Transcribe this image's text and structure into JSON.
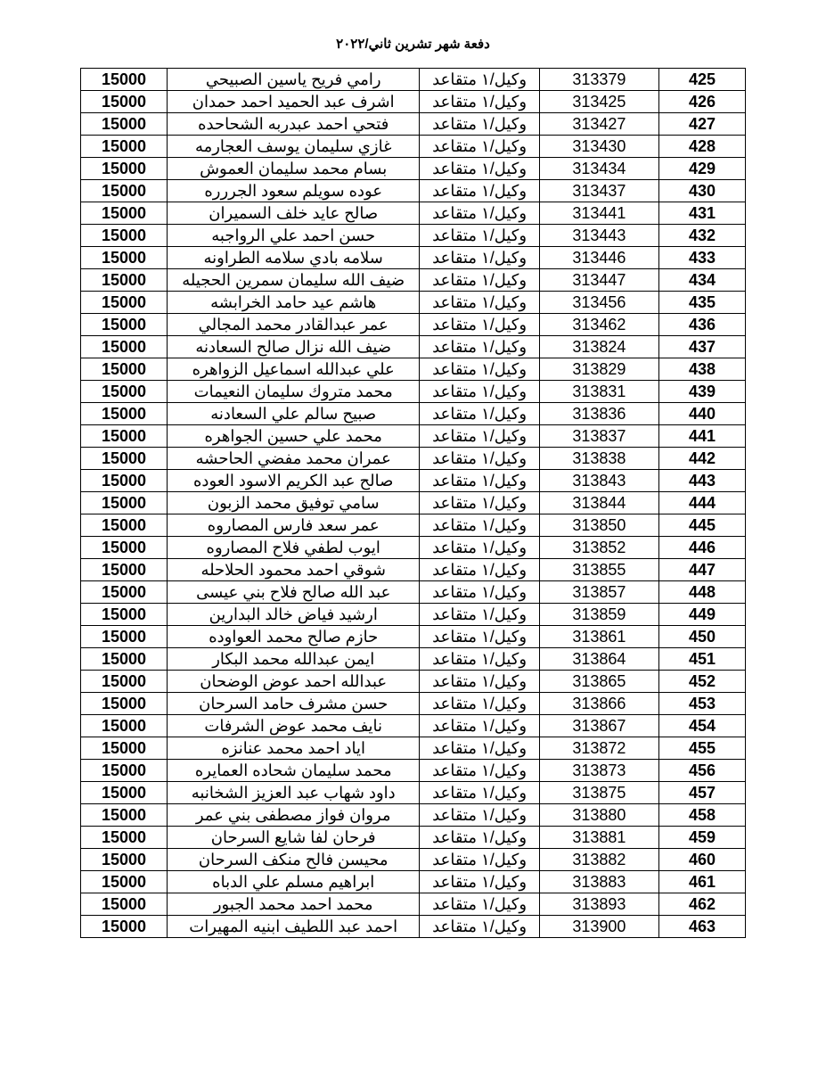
{
  "document": {
    "title": "دفعة شهر تشرين ثاني/٢٠٢٢",
    "background_color": "#ffffff",
    "border_color": "#000000",
    "text_color": "#000000"
  },
  "table": {
    "type": "table",
    "columns": [
      {
        "key": "amount",
        "align": "center",
        "width_pct": 13,
        "bold": true
      },
      {
        "key": "name",
        "align": "center",
        "width_pct": 38,
        "rtl": true
      },
      {
        "key": "rank",
        "align": "center",
        "width_pct": 18,
        "rtl": true
      },
      {
        "key": "id",
        "align": "center",
        "width_pct": 18
      },
      {
        "key": "seq",
        "align": "center",
        "width_pct": 13,
        "bold": true
      }
    ],
    "rows": [
      {
        "amount": "15000",
        "name": "رامي فريح ياسين الصبيحي",
        "rank": "وكيل/١ متقاعد",
        "id": "313379",
        "seq": "425"
      },
      {
        "amount": "15000",
        "name": "اشرف عبد الحميد احمد حمدان",
        "rank": "وكيل/١ متقاعد",
        "id": "313425",
        "seq": "426"
      },
      {
        "amount": "15000",
        "name": "فتحي احمد عبدربه الشحاحده",
        "rank": "وكيل/١ متقاعد",
        "id": "313427",
        "seq": "427"
      },
      {
        "amount": "15000",
        "name": "غازي سليمان يوسف العجارمه",
        "rank": "وكيل/١ متقاعد",
        "id": "313430",
        "seq": "428"
      },
      {
        "amount": "15000",
        "name": "بسام محمد سليمان العموش",
        "rank": "وكيل/١ متقاعد",
        "id": "313434",
        "seq": "429"
      },
      {
        "amount": "15000",
        "name": "عوده سويلم سعود الجررره",
        "rank": "وكيل/١ متقاعد",
        "id": "313437",
        "seq": "430"
      },
      {
        "amount": "15000",
        "name": "صالح عايد خلف السميران",
        "rank": "وكيل/١ متقاعد",
        "id": "313441",
        "seq": "431"
      },
      {
        "amount": "15000",
        "name": "حسن احمد علي الرواجبه",
        "rank": "وكيل/١ متقاعد",
        "id": "313443",
        "seq": "432"
      },
      {
        "amount": "15000",
        "name": "سلامه بادي سلامه الطراونه",
        "rank": "وكيل/١ متقاعد",
        "id": "313446",
        "seq": "433"
      },
      {
        "amount": "15000",
        "name": "ضيف الله سليمان سمرين الحجيله",
        "rank": "وكيل/١ متقاعد",
        "id": "313447",
        "seq": "434"
      },
      {
        "amount": "15000",
        "name": "هاشم عيد حامد الخرابشه",
        "rank": "وكيل/١ متقاعد",
        "id": "313456",
        "seq": "435"
      },
      {
        "amount": "15000",
        "name": "عمر عبدالقادر محمد المجالي",
        "rank": "وكيل/١ متقاعد",
        "id": "313462",
        "seq": "436"
      },
      {
        "amount": "15000",
        "name": "ضيف الله نزال صالح السعادنه",
        "rank": "وكيل/١ متقاعد",
        "id": "313824",
        "seq": "437"
      },
      {
        "amount": "15000",
        "name": "علي عبدالله اسماعيل الزواهره",
        "rank": "وكيل/١ متقاعد",
        "id": "313829",
        "seq": "438"
      },
      {
        "amount": "15000",
        "name": "محمد متروك سليمان النعيمات",
        "rank": "وكيل/١ متقاعد",
        "id": "313831",
        "seq": "439"
      },
      {
        "amount": "15000",
        "name": "صبيح سالم علي السعادنه",
        "rank": "وكيل/١ متقاعد",
        "id": "313836",
        "seq": "440"
      },
      {
        "amount": "15000",
        "name": "محمد علي حسين الجواهره",
        "rank": "وكيل/١ متقاعد",
        "id": "313837",
        "seq": "441"
      },
      {
        "amount": "15000",
        "name": "عمران محمد مفضي الحاحشه",
        "rank": "وكيل/١ متقاعد",
        "id": "313838",
        "seq": "442"
      },
      {
        "amount": "15000",
        "name": "صالح عبد الكريم الاسود العوده",
        "rank": "وكيل/١ متقاعد",
        "id": "313843",
        "seq": "443"
      },
      {
        "amount": "15000",
        "name": "سامي توفيق محمد الزبون",
        "rank": "وكيل/١ متقاعد",
        "id": "313844",
        "seq": "444"
      },
      {
        "amount": "15000",
        "name": "عمر سعد فارس المصاروه",
        "rank": "وكيل/١ متقاعد",
        "id": "313850",
        "seq": "445"
      },
      {
        "amount": "15000",
        "name": "ايوب لطفي فلاح المصاروه",
        "rank": "وكيل/١ متقاعد",
        "id": "313852",
        "seq": "446"
      },
      {
        "amount": "15000",
        "name": "شوقي احمد محمود الحلاحله",
        "rank": "وكيل/١ متقاعد",
        "id": "313855",
        "seq": "447"
      },
      {
        "amount": "15000",
        "name": "عبد الله صالح فلاح بني عيسى",
        "rank": "وكيل/١ متقاعد",
        "id": "313857",
        "seq": "448"
      },
      {
        "amount": "15000",
        "name": "ارشيد فياض خالد البدارين",
        "rank": "وكيل/١ متقاعد",
        "id": "313859",
        "seq": "449"
      },
      {
        "amount": "15000",
        "name": "حازم صالح محمد العواوده",
        "rank": "وكيل/١ متقاعد",
        "id": "313861",
        "seq": "450"
      },
      {
        "amount": "15000",
        "name": "ايمن عبدالله محمد البكار",
        "rank": "وكيل/١ متقاعد",
        "id": "313864",
        "seq": "451"
      },
      {
        "amount": "15000",
        "name": "عبدالله احمد عوض الوضحان",
        "rank": "وكيل/١ متقاعد",
        "id": "313865",
        "seq": "452"
      },
      {
        "amount": "15000",
        "name": "حسن مشرف حامد السرحان",
        "rank": "وكيل/١ متقاعد",
        "id": "313866",
        "seq": "453"
      },
      {
        "amount": "15000",
        "name": "نايف محمد عوض الشرفات",
        "rank": "وكيل/١ متقاعد",
        "id": "313867",
        "seq": "454"
      },
      {
        "amount": "15000",
        "name": "اياد احمد محمد عنانزه",
        "rank": "وكيل/١ متقاعد",
        "id": "313872",
        "seq": "455"
      },
      {
        "amount": "15000",
        "name": "محمد سليمان شحاده العمايره",
        "rank": "وكيل/١ متقاعد",
        "id": "313873",
        "seq": "456"
      },
      {
        "amount": "15000",
        "name": "داود شهاب عبد العزيز الشخانبه",
        "rank": "وكيل/١ متقاعد",
        "id": "313875",
        "seq": "457"
      },
      {
        "amount": "15000",
        "name": "مروان فواز مصطفى بني عمر",
        "rank": "وكيل/١ متقاعد",
        "id": "313880",
        "seq": "458"
      },
      {
        "amount": "15000",
        "name": "فرحان لفا شايع السرحان",
        "rank": "وكيل/١ متقاعد",
        "id": "313881",
        "seq": "459"
      },
      {
        "amount": "15000",
        "name": "محيسن فالح منكف السرحان",
        "rank": "وكيل/١ متقاعد",
        "id": "313882",
        "seq": "460"
      },
      {
        "amount": "15000",
        "name": "ابراهيم مسلم علي الدباه",
        "rank": "وكيل/١ متقاعد",
        "id": "313883",
        "seq": "461"
      },
      {
        "amount": "15000",
        "name": "محمد احمد محمد الجبور",
        "rank": "وكيل/١ متقاعد",
        "id": "313893",
        "seq": "462"
      },
      {
        "amount": "15000",
        "name": "احمد عبد اللطيف ابنيه المهيرات",
        "rank": "وكيل/١ متقاعد",
        "id": "313900",
        "seq": "463"
      }
    ]
  }
}
